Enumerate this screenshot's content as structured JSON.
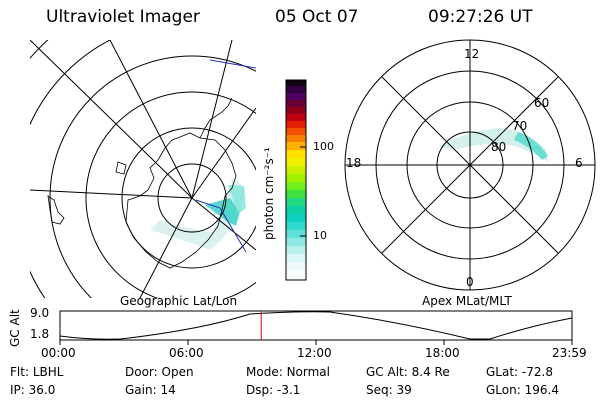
{
  "header": {
    "title": "Ultraviolet Imager",
    "date": "05 Oct 07",
    "time": "09:27:26 UT"
  },
  "colorbar": {
    "unit_label": "photon cm⁻²s⁻¹",
    "ticks": [
      "100",
      "10"
    ]
  },
  "polar_plot": {
    "mlt_labels": [
      "12",
      "18",
      "6",
      "0"
    ],
    "lat_labels": [
      "60",
      "70",
      "80"
    ]
  },
  "timeline": {
    "left_caption": "Geographic Lat/Lon",
    "right_caption": "Apex MLat/MLT",
    "y_axis_label": "GC Alt",
    "y_ticks": [
      "9.0",
      "1.8"
    ],
    "x_ticks": [
      "00:00",
      "06:00",
      "12:00",
      "18:00",
      "23:59"
    ],
    "current_time_fraction": 0.393,
    "marker_color": "#e00000"
  },
  "info": {
    "row1": [
      {
        "label": "Flt:",
        "value": "LBHL"
      },
      {
        "label": "Door:",
        "value": "Open"
      },
      {
        "label": "Mode:",
        "value": "Normal"
      },
      {
        "label": "GC Alt:",
        "value": "8.4 Re"
      },
      {
        "label": "GLat:",
        "value": "-72.8"
      }
    ],
    "row2": [
      {
        "label": "IP:",
        "value": "36.0"
      },
      {
        "label": "Gain:",
        "value": "14"
      },
      {
        "label": "Dsp:",
        "value": "-3.1"
      },
      {
        "label": "Seq:",
        "value": "39"
      },
      {
        "label": "GLon:",
        "value": "196.4"
      }
    ]
  }
}
